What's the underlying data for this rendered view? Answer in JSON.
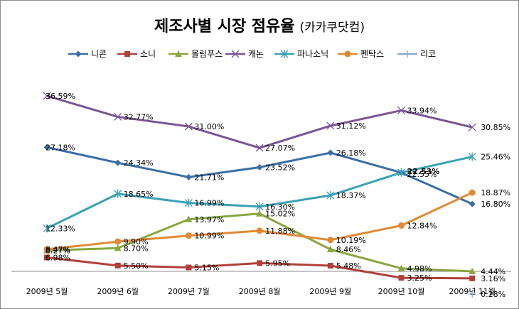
{
  "chart_data": {
    "type": "line",
    "title": "제조사별 시장 점유율",
    "subtitle": "(카카쿠닷컴)",
    "categories": [
      "2009년 5월",
      "2009년 6월",
      "2009년 7월",
      "2009년 8월",
      "2009년 9월",
      "2009년 10월",
      "2009년 11월"
    ],
    "ylim": [
      0,
      40
    ],
    "grid": false,
    "legend_position": "top",
    "series": [
      {
        "name": "니콘",
        "color": "#3a6ea5",
        "marker": "diamond",
        "values": [
          27.18,
          24.34,
          21.71,
          23.52,
          26.18,
          22.53,
          16.8
        ],
        "labels": [
          "27.18%",
          "24.34%",
          "21.71%",
          "23.52%",
          "26.18%",
          "22.53%",
          "16.80%"
        ]
      },
      {
        "name": "소니",
        "color": "#b0403a",
        "marker": "square",
        "values": [
          6.98,
          5.5,
          5.15,
          5.95,
          5.48,
          3.25,
          3.16
        ],
        "labels": [
          "6.98%",
          "5.50%",
          "5.15%",
          "5.95%",
          "5.48%",
          "3.25%",
          "3.16%"
        ]
      },
      {
        "name": "올림푸스",
        "color": "#8aa640",
        "marker": "triangle",
        "values": [
          8.27,
          8.7,
          13.97,
          15.02,
          8.46,
          4.98,
          4.44
        ],
        "labels": [
          "8.27%",
          "8.70%",
          "13.97%",
          "15.02%",
          "8.46%",
          "4.98%",
          "4.44%"
        ]
      },
      {
        "name": "캐논",
        "color": "#7a5595",
        "marker": "x",
        "values": [
          36.59,
          32.77,
          31.0,
          27.07,
          31.12,
          33.94,
          30.85
        ],
        "labels": [
          "36.59%",
          "32.77%",
          "31.00%",
          "27.07%",
          "31.12%",
          "33.94%",
          "30.85%"
        ]
      },
      {
        "name": "파나소닉",
        "color": "#3aa0b5",
        "marker": "star",
        "values": [
          12.33,
          18.65,
          16.99,
          16.3,
          18.37,
          22.55,
          25.46
        ],
        "labels": [
          "12.33%",
          "18.65%",
          "16.99%",
          "16.30%",
          "18.37%",
          "22.55%",
          "25.46%"
        ]
      },
      {
        "name": "펜탁스",
        "color": "#e08a35",
        "marker": "circle",
        "values": [
          8.47,
          9.9,
          10.99,
          11.88,
          10.19,
          12.84,
          18.87
        ],
        "labels": [
          "8.47%",
          "9.90%",
          "10.99%",
          "11.88%",
          "10.19%",
          "12.84%",
          "18.87%"
        ]
      },
      {
        "name": "리코",
        "color": "#8aaad0",
        "marker": "plus",
        "values": [
          null,
          null,
          null,
          null,
          null,
          null,
          0.28
        ],
        "labels": [
          null,
          null,
          null,
          null,
          null,
          null,
          "0.28%"
        ]
      }
    ]
  }
}
